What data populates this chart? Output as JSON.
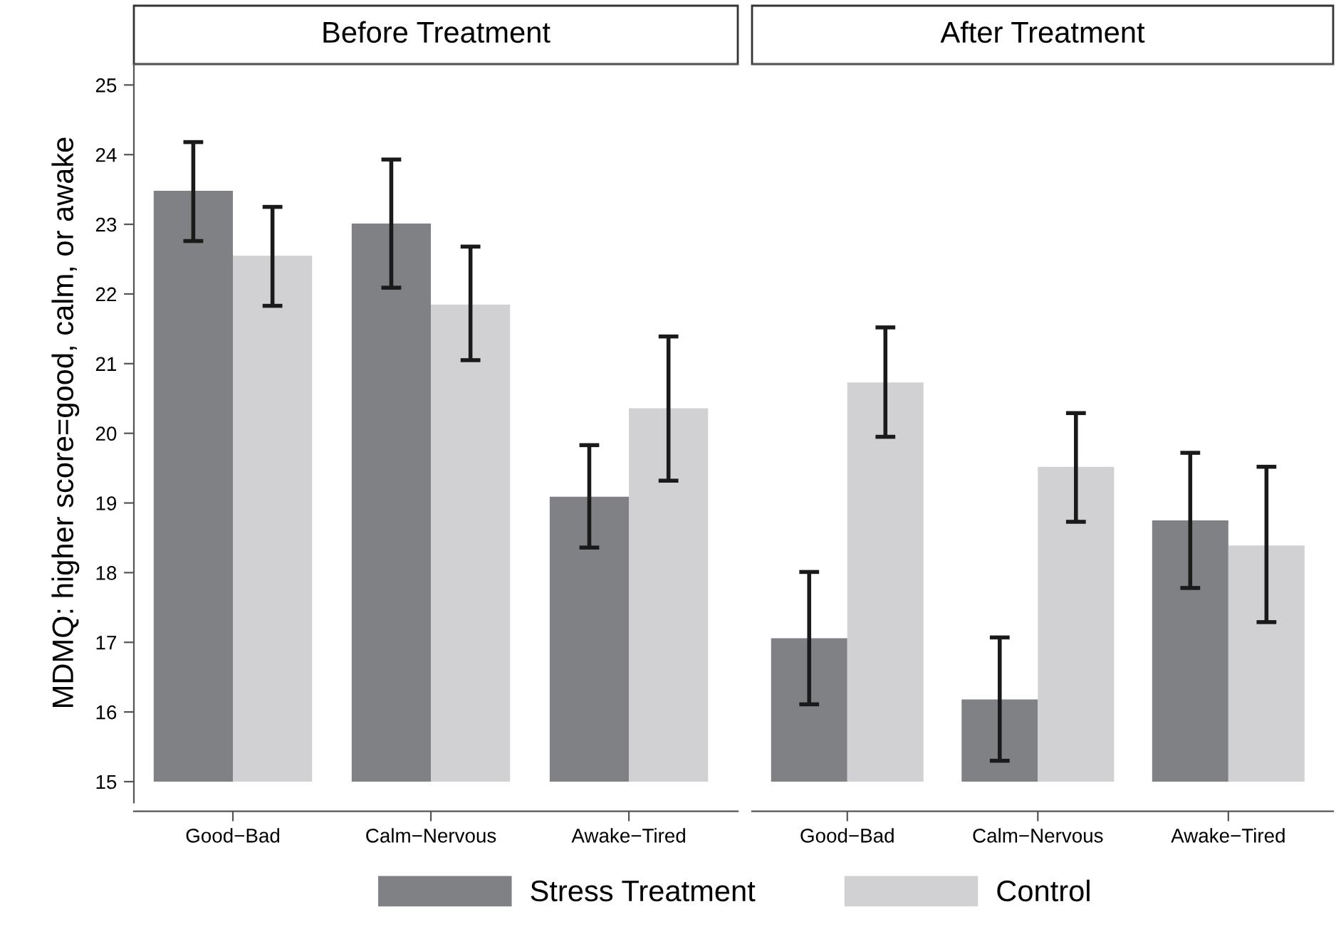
{
  "chart_data": [
    {
      "type": "bar",
      "title": "Before Treatment",
      "ylabel": "MDMQ: higher score=good, calm, or awake",
      "categories": [
        "Good−Bad",
        "Calm−Nervous",
        "Awake−Tired"
      ],
      "ylim": [
        15,
        25.3
      ],
      "yticks": [
        15,
        16,
        17,
        18,
        19,
        20,
        21,
        22,
        23,
        24,
        25
      ],
      "grid": false,
      "legend": "bottom",
      "series": [
        {
          "name": "Stress Treatment",
          "color": "#808184",
          "values": [
            23.48,
            23.01,
            19.09
          ],
          "errors": [
            [
              22.76,
              24.18
            ],
            [
              22.09,
              23.93
            ],
            [
              18.36,
              19.83
            ]
          ]
        },
        {
          "name": "Control",
          "color": "#d1d1d3",
          "values": [
            22.55,
            21.85,
            20.36
          ],
          "errors": [
            [
              21.83,
              23.25
            ],
            [
              21.05,
              22.68
            ],
            [
              19.32,
              21.39
            ]
          ]
        }
      ]
    },
    {
      "type": "bar",
      "title": "After Treatment",
      "categories": [
        "Good−Bad",
        "Calm−Nervous",
        "Awake−Tired"
      ],
      "ylim": [
        15,
        25.3
      ],
      "yticks": [
        15,
        16,
        17,
        18,
        19,
        20,
        21,
        22,
        23,
        24,
        25
      ],
      "grid": false,
      "tick_labels": "x",
      "series": [
        {
          "color": "#808184",
          "values": [
            17.06,
            16.18,
            18.75
          ],
          "errors": [
            [
              16.11,
              18.01
            ],
            [
              15.3,
              17.07
            ],
            [
              17.78,
              19.72
            ]
          ]
        },
        {
          "color": "#d1d1d3",
          "values": [
            20.73,
            19.52,
            18.39
          ],
          "errors": [
            [
              19.95,
              21.52
            ],
            [
              18.73,
              20.29
            ],
            [
              17.29,
              19.52
            ]
          ]
        }
      ]
    }
  ]
}
